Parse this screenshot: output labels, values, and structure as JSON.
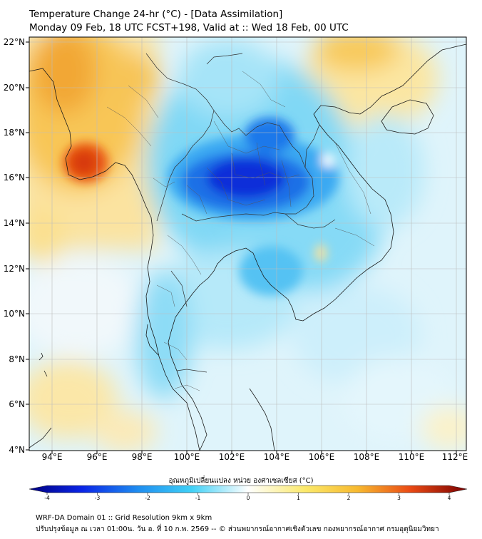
{
  "header": {
    "title_line1": "Temperature Change 24-hr (°C) - [Data Assimilation]",
    "title_line2": "Monday 09 Feb, 18 UTC FCST+198, Valid at :: Wed 18 Feb, 00 UTC"
  },
  "map": {
    "lon_ticks": [
      "94°E",
      "96°E",
      "98°E",
      "100°E",
      "102°E",
      "104°E",
      "106°E",
      "108°E",
      "110°E",
      "112°E"
    ],
    "lat_ticks": [
      "22°N",
      "20°N",
      "18°N",
      "16°N",
      "14°N",
      "12°N",
      "10°N",
      "8°N",
      "6°N",
      "4°N"
    ],
    "lon_range": [
      93,
      112.5
    ],
    "lat_range": [
      4,
      22.2
    ]
  },
  "colorbar": {
    "title": "อุณหภูมิเปลี่ยนแปลง หน่วย องศาเซลเซียส (°C)",
    "tick_labels": [
      "-4",
      "-3",
      "-2",
      "-1",
      "0",
      "1",
      "2",
      "3",
      "4"
    ],
    "range": [
      -4,
      4
    ]
  },
  "footer": {
    "line1": "WRF-DA Domain 01 :: Grid Resolution 9km x 9km",
    "line2": "ปรับปรุงข้อมูล ณ เวลา 01:00น. วัน อ. ที่ 10 ก.พ. 2569 -- © ส่วนพยากรณ์อากาศเชิงตัวเลข กองพยากรณ์อากาศ กรมอุตุนิยมวิทยา"
  }
}
